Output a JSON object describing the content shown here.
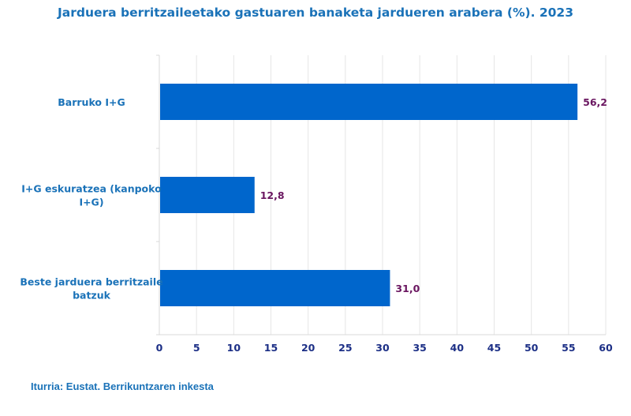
{
  "chart_data": {
    "type": "bar",
    "orientation": "horizontal",
    "title": "Jarduera berritzaileetako gastuaren banaketa jardueren arabera (%). 2023",
    "categories": [
      [
        "Barruko I+G"
      ],
      [
        "I+G eskuratzea (kanpoko",
        "I+G)"
      ],
      [
        "Beste jarduera berritzaile",
        "batzuk"
      ]
    ],
    "values": [
      56.2,
      12.8,
      31.0
    ],
    "value_labels": [
      "56,2",
      "12,8",
      "31,0"
    ],
    "xlim": [
      0,
      60
    ],
    "xticks": [
      0,
      5,
      10,
      15,
      20,
      25,
      30,
      35,
      40,
      45,
      50,
      55,
      60
    ],
    "grid": true,
    "bar_color": "#0066cc",
    "gridline_color": "#e6e6e6"
  },
  "source": "Iturria: Eustat. Berrikuntzaren inkesta"
}
